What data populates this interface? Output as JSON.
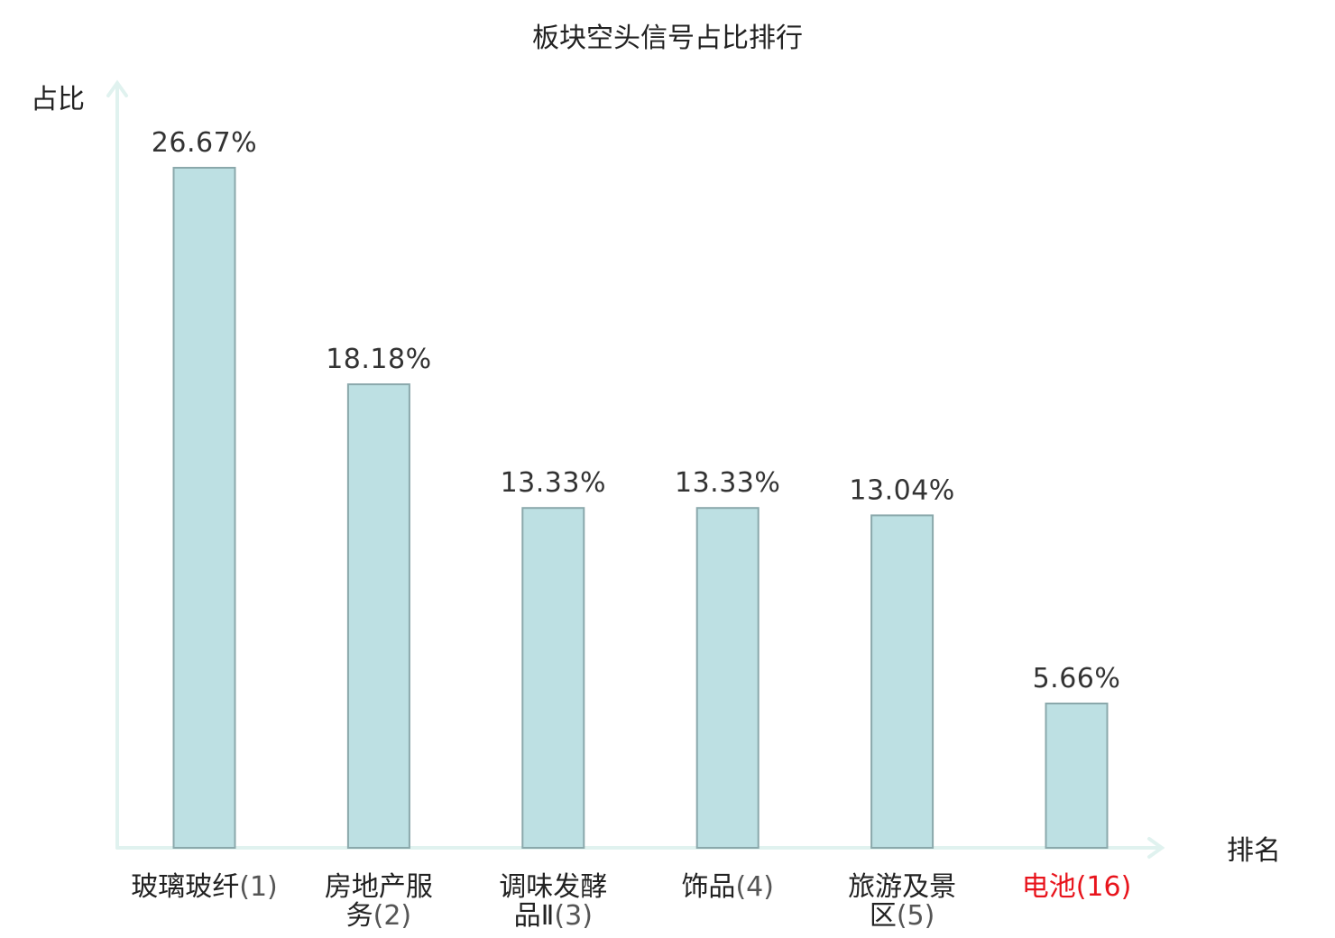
{
  "chart_data": {
    "type": "bar",
    "title": "板块空头信号占比排行",
    "xlabel": "排名",
    "ylabel": "占比",
    "categories": [
      {
        "name": "玻璃玻纤",
        "rank": "(1)"
      },
      {
        "name": "房地产服务",
        "rank": "(2)"
      },
      {
        "name": "调味发酵品Ⅱ",
        "rank": "(3)"
      },
      {
        "name": "饰品",
        "rank": "(4)"
      },
      {
        "name": "旅游及景区",
        "rank": "(5)"
      },
      {
        "name": "电池",
        "rank": "(16)"
      }
    ],
    "values": [
      26.67,
      18.18,
      13.33,
      13.33,
      13.04,
      5.66
    ],
    "value_labels": [
      "26.67%",
      "18.18%",
      "13.33%",
      "13.33%",
      "13.04%",
      "5.66%"
    ],
    "ylim": [
      0,
      30
    ],
    "grid": false,
    "highlight_index": 5,
    "colors": {
      "bar_fill": "#bde0e3",
      "bar_stroke": "#8aa8ab",
      "axis": "#e0f2ef",
      "highlight_label": "#e8141c",
      "rank_text": "#555555"
    }
  }
}
